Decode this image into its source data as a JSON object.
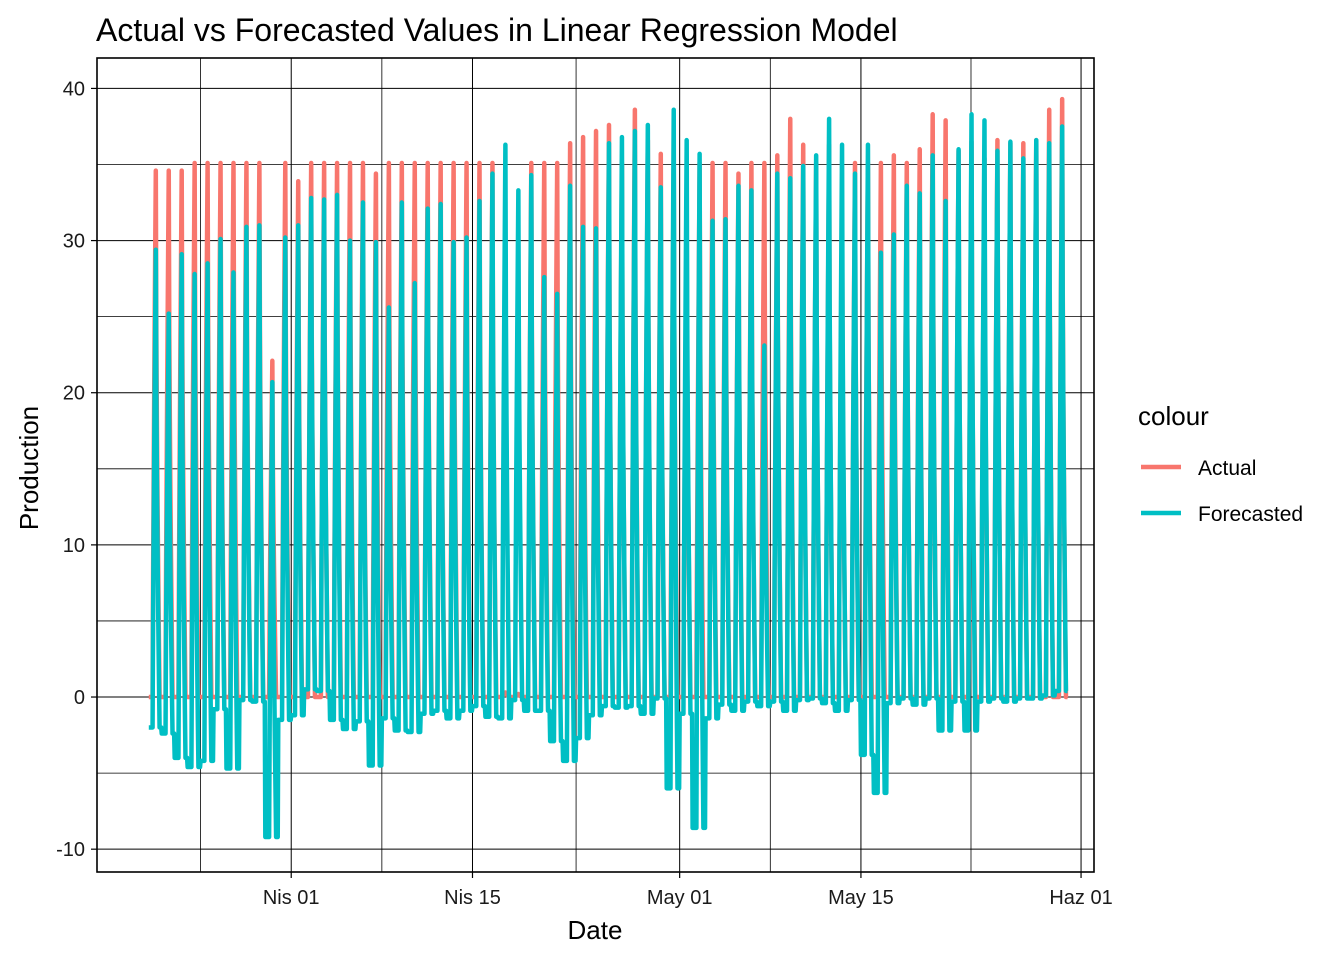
{
  "chart_data": {
    "type": "line",
    "title": "Actual vs Forecasted Values in Linear Regression Model",
    "xlabel": "Date",
    "ylabel": "Production",
    "legend_title": "colour",
    "legend_position": "right",
    "grid": true,
    "xlim": [
      "2021-03-17",
      "2021-06-02"
    ],
    "ylim": [
      -11.5,
      42
    ],
    "y_ticks": [
      -10,
      0,
      10,
      20,
      30,
      40
    ],
    "x_ticks": [
      {
        "date": "2021-04-01",
        "label": "Nis 01"
      },
      {
        "date": "2021-04-15",
        "label": "Nis 15"
      },
      {
        "date": "2021-05-01",
        "label": "May 01"
      },
      {
        "date": "2021-05-15",
        "label": "May 15"
      },
      {
        "date": "2021-06-01",
        "label": "Haz 01"
      }
    ],
    "colors": {
      "Actual": "#F8766D",
      "Forecasted": "#00BFC4"
    },
    "x_start": "2021-03-21",
    "series": [
      {
        "name": "Actual",
        "daily_peaks": [
          34.6,
          34.6,
          34.6,
          35.1,
          35.1,
          35.1,
          35.1,
          35.1,
          35.1,
          22.1,
          35.1,
          33.9,
          35.1,
          35.1,
          35.1,
          35.1,
          35.1,
          34.4,
          35.1,
          35.1,
          35.1,
          35.1,
          35.1,
          35.1,
          35.1,
          35.1,
          35.1,
          0.3,
          0.2,
          35.1,
          35.1,
          35.1,
          36.4,
          36.8,
          37.2,
          37.6,
          35.1,
          38.6,
          36.6,
          35.7,
          35.1,
          31.4,
          35.1,
          35.1,
          35.1,
          34.4,
          35.1,
          35.1,
          35.6,
          38.0,
          36.3,
          35.1,
          36.3,
          31.8,
          35.1,
          35.1,
          35.1,
          35.6,
          35.1,
          36.0,
          38.3,
          37.9,
          35.9,
          36.5,
          35.4,
          36.6,
          36.4,
          36.4,
          36.6,
          38.6,
          39.3
        ],
        "daily_mins": [
          0,
          0,
          0,
          0,
          0,
          0,
          0,
          0,
          0,
          0,
          0,
          0,
          0,
          0,
          0,
          0,
          0,
          0,
          0,
          0,
          0,
          0,
          0,
          0,
          0,
          0,
          0,
          0,
          0,
          0,
          0,
          0,
          0,
          0,
          0,
          0,
          0,
          0,
          0,
          0,
          0,
          0,
          0,
          0,
          0,
          0,
          0,
          0,
          0,
          0,
          0,
          0,
          0,
          0,
          0,
          0,
          0,
          0,
          0,
          0,
          0,
          0,
          0,
          0,
          0,
          0,
          0,
          0,
          0,
          0,
          0
        ]
      },
      {
        "name": "Forecasted",
        "daily_peaks": [
          29.4,
          25.2,
          29.1,
          27.8,
          28.5,
          30.1,
          27.9,
          30.9,
          31.0,
          20.7,
          30.2,
          31.0,
          32.8,
          32.7,
          33.0,
          30.0,
          32.5,
          29.9,
          25.6,
          32.5,
          27.2,
          32.1,
          32.4,
          29.9,
          30.2,
          32.6,
          34.4,
          36.3,
          33.3,
          34.3,
          27.6,
          26.5,
          33.6,
          30.9,
          30.8,
          36.4,
          36.8,
          37.2,
          37.6,
          33.5,
          38.6,
          36.6,
          35.7,
          31.3,
          31.4,
          33.6,
          33.3,
          23.1,
          34.4,
          34.1,
          34.9,
          35.6,
          38.0,
          36.3,
          34.4,
          36.3,
          29.2,
          30.4,
          33.6,
          33.1,
          35.6,
          32.6,
          36.0,
          38.3,
          37.9,
          35.9,
          36.5,
          35.4,
          36.6,
          36.4,
          37.5
        ],
        "daily_mins": [
          -2.0,
          -2.4,
          -4.0,
          -4.6,
          -4.2,
          -0.8,
          -4.7,
          -0.2,
          -0.3,
          -9.2,
          -1.5,
          -1.2,
          0.5,
          0.4,
          -1.5,
          -2.1,
          -1.6,
          -4.5,
          -1.4,
          -2.2,
          -2.3,
          -1.1,
          -0.9,
          -1.4,
          -0.9,
          -0.6,
          -1.3,
          -1.4,
          -0.2,
          -0.9,
          -0.9,
          -2.9,
          -4.2,
          -2.7,
          -1.2,
          -0.6,
          -0.7,
          -0.6,
          -1.1,
          -0.1,
          -6.0,
          -1.1,
          -8.6,
          -1.4,
          -0.5,
          -0.9,
          -0.3,
          -0.6,
          -0.3,
          -0.9,
          -0.2,
          -0.1,
          -0.4,
          -0.9,
          -0.2,
          -3.8,
          -6.3,
          -0.4,
          -0.1,
          -0.5,
          -0.1,
          -2.2,
          -0.3,
          -2.2,
          -0.3,
          -0.1,
          -0.3,
          -0.1,
          -0.1,
          0.1,
          0.4
        ]
      }
    ]
  }
}
